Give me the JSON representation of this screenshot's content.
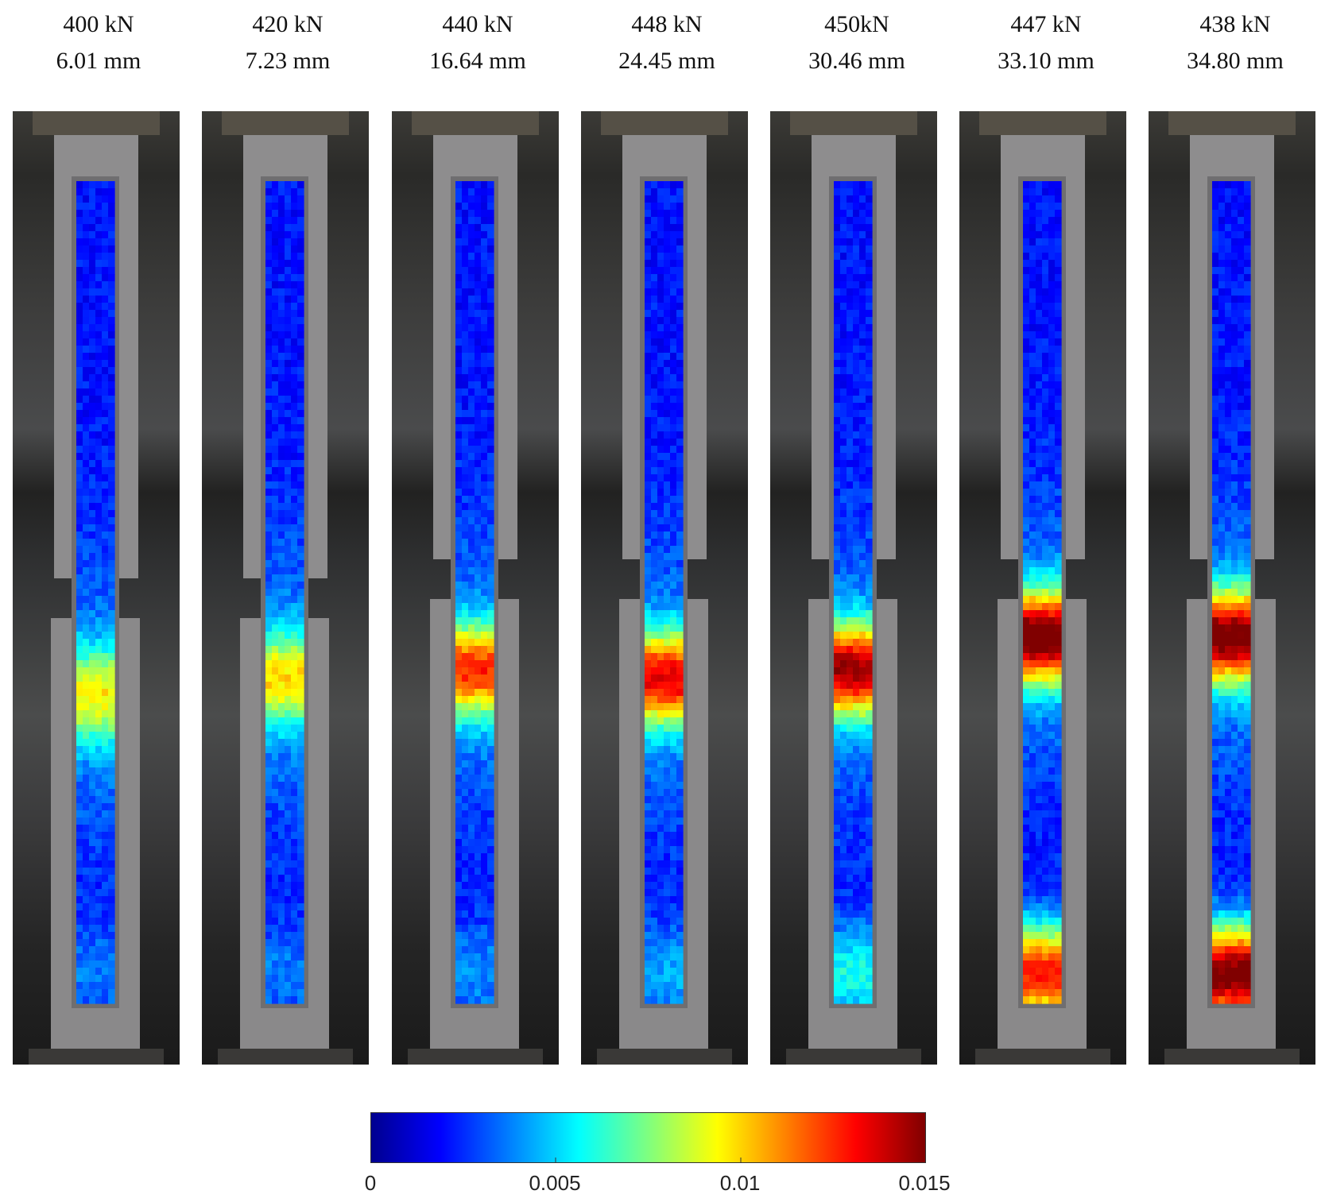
{
  "panels": [
    {
      "load": "400 kN",
      "displacement": "6.01 mm"
    },
    {
      "load": "420 kN",
      "displacement": "7.23 mm"
    },
    {
      "load": "440 kN",
      "displacement": "16.64 mm"
    },
    {
      "load": "448 kN",
      "displacement": "24.45 mm"
    },
    {
      "load": "450kN",
      "displacement": "30.46 mm"
    },
    {
      "load": "447 kN",
      "displacement": "33.10 mm"
    },
    {
      "load": "438 kN",
      "displacement": "34.80 mm"
    }
  ],
  "colorbar": {
    "ticks": [
      "0",
      "0.005",
      "0.01",
      "0.015"
    ],
    "range": [
      0,
      0.015
    ],
    "colormap": "jet"
  },
  "colors": {
    "low": "#00008f",
    "mid": "#00ffff",
    "high": "#800000"
  }
}
